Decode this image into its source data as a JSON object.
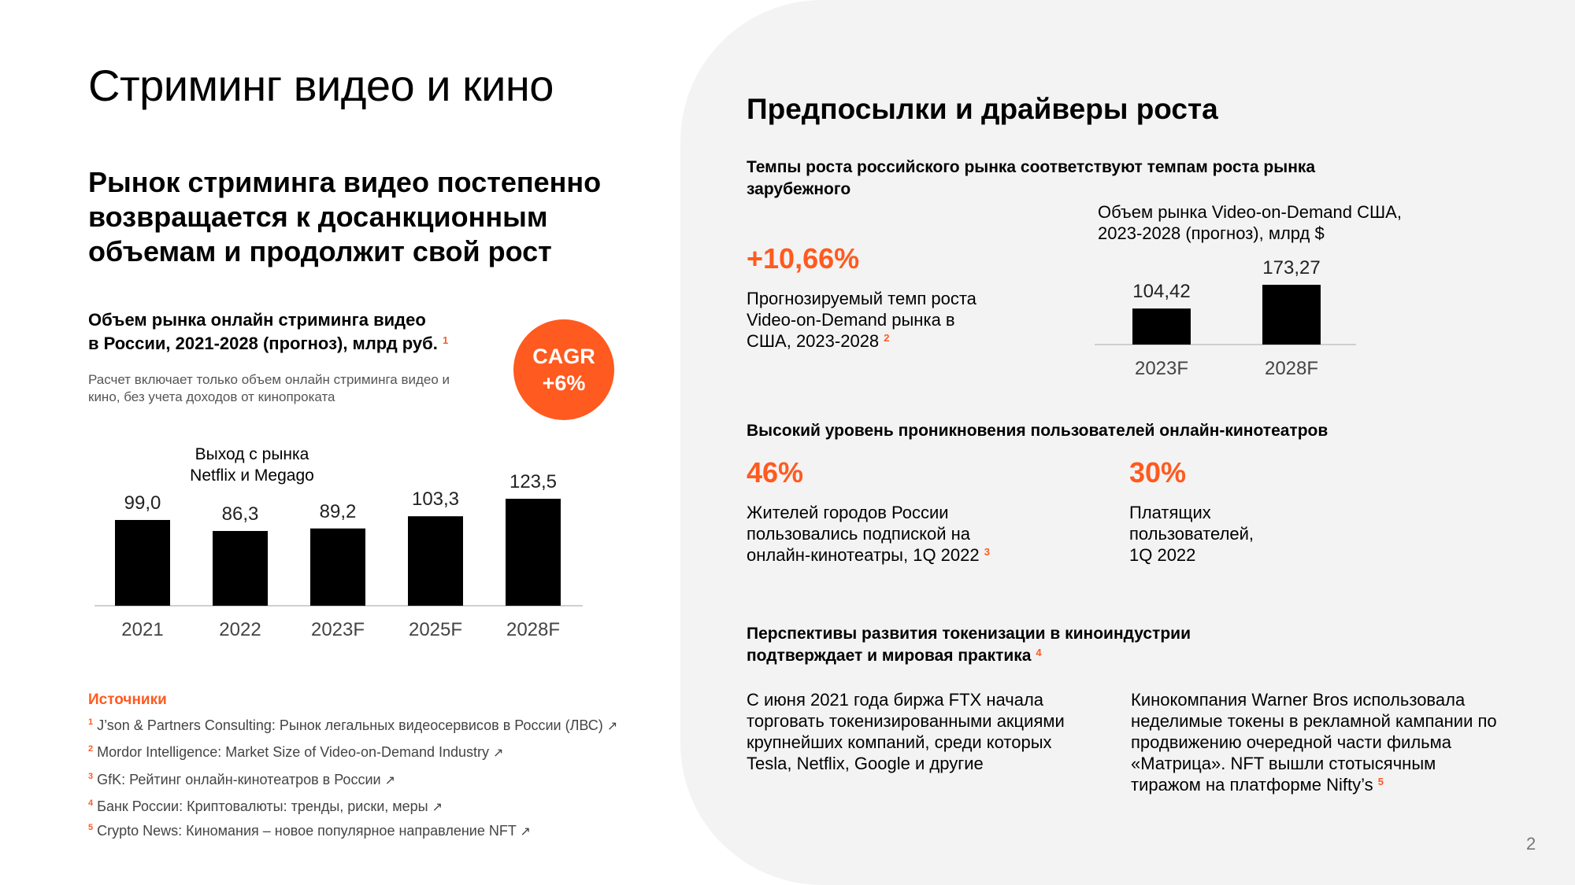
{
  "left": {
    "title": "Стриминг видео и кино",
    "subtitle": "Рынок стриминга видео постепенно возвращается к досанкционным объемам и продолжит свой рост",
    "chart_title_line1": "Объем рынка онлайн стриминга видео",
    "chart_title_line2": "в России, 2021-2028 (прогноз), млрд руб.",
    "chart_title_ref": "1",
    "chart_note": "Расчет включает только объем онлайн стриминга видео и кино, без учета доходов от кинопроката",
    "cagr_line1": "CAGR",
    "cagr_line2": "+6%",
    "annotation": "Выход с рынка Netflix и Megago"
  },
  "sources": {
    "title": "Источники",
    "items": [
      {
        "n": "1",
        "text": "J’son & Partners Consulting: Рынок легальных видеосервисов в России (ЛВС)",
        "icon": "external-link-icon"
      },
      {
        "n": "2",
        "text": "Mordor Intelligence: Market Size of Video-on-Demand Industry",
        "icon": "external-link-icon"
      },
      {
        "n": "3",
        "text": "GfK: Рейтинг онлайн-кинотеатров в России",
        "icon": "external-link-icon"
      },
      {
        "n": "4",
        "text": "Банк России: Криптовалюты: тренды, риски, меры",
        "icon": "external-link-icon"
      },
      {
        "n": "5",
        "text": "Crypto News: Киномания – новое популярное направление NFT",
        "icon": "external-link-icon"
      }
    ]
  },
  "right": {
    "title": "Предпосылки и драйверы роста",
    "section1_heading": "Темпы роста российского рынка соответствуют темпам роста рынка зарубежного",
    "growth_value": "+10,66%",
    "growth_text": "Прогнозируемый темп роста Video-on-Demand рынка в США, 2023-2028",
    "growth_ref": "2",
    "us_chart_title": "Объем рынка Video-on-Demand США, 2023-2028 (прогноз), млрд $",
    "section2_heading": "Высокий уровень проникновения пользователей онлайн-кинотеатров",
    "stat1_value": "46%",
    "stat1_text": "Жителей городов России пользовались подпиской на онлайн-кинотеатры, 1Q 2022",
    "stat1_ref": "3",
    "stat2_value": "30%",
    "stat2_text": "Платящих пользователей, 1Q 2022",
    "section3_heading": "Перспективы развития токенизации в киноиндустрии подтверждает и мировая практика",
    "section3_ref": "4",
    "col1_text": "С июня 2021 года биржа FTX начала торговать токенизированными акциями крупнейших компаний, среди которых Tesla, Netflix, Google и другие",
    "col2_text": "Кинокомпания Warner Bros использовала неделимые токены в рекламной кампании по продвижению очередной части фильма «Матрица». NFT вышли стотысячным тиражом на платформе Nifty’s",
    "col2_ref": "5"
  },
  "page_number": "2",
  "colors": {
    "accent": "#ff5a1f",
    "bar": "#000000",
    "panel": "#f3f3f3"
  },
  "chart_data": [
    {
      "type": "bar",
      "categories": [
        "2021",
        "2022",
        "2023F",
        "2025F",
        "2028F"
      ],
      "values": [
        99.0,
        86.3,
        89.2,
        103.3,
        123.5
      ],
      "value_labels": [
        "99,0",
        "86,3",
        "89,2",
        "103,3",
        "123,5"
      ]
    },
    {
      "type": "bar",
      "categories": [
        "2023F",
        "2028F"
      ],
      "values": [
        104.42,
        173.27
      ],
      "value_labels": [
        "104,42",
        "173,27"
      ]
    }
  ]
}
